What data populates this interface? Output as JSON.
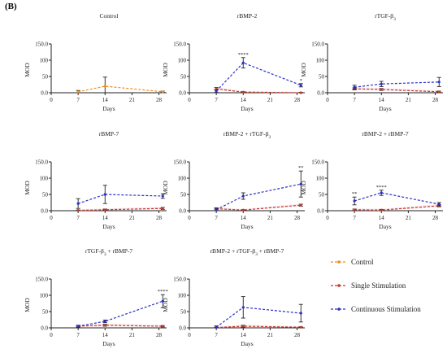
{
  "panel_label": "(B)",
  "colors": {
    "Control": "#f08c1e",
    "Single Stimulation": "#c0392b",
    "Continuous Stimulation": "#2a2fc9",
    "single_band": "#f4c7d0",
    "axis": "#222222"
  },
  "legend": {
    "items": [
      {
        "name": "Control",
        "color": "#f08c1e"
      },
      {
        "name": "Single Stimulation",
        "color": "#c0392b"
      },
      {
        "name": "Continuous Stimulation",
        "color": "#2a2fc9"
      }
    ]
  },
  "chart_data": [
    {
      "type": "line",
      "title": "Control",
      "xlabel": "Days",
      "ylabel": "MOD",
      "xlim": [
        0,
        30
      ],
      "ylim": [
        0,
        150
      ],
      "xticks": [
        0,
        7,
        14,
        21,
        28
      ],
      "yticks": [
        0,
        50,
        100,
        150
      ],
      "ytick_labels": [
        "0.0",
        "50",
        "100",
        "150.0"
      ],
      "series": [
        {
          "name": "Control",
          "x": [
            7,
            14,
            29
          ],
          "y": [
            3,
            20,
            3
          ],
          "err": [
            4,
            28,
            2
          ]
        }
      ],
      "annotations": []
    },
    {
      "type": "line",
      "title": "rBMP-2",
      "xlabel": "Days",
      "ylabel": "MOD",
      "xlim": [
        0,
        30
      ],
      "ylim": [
        0,
        150
      ],
      "xticks": [
        0,
        7,
        14,
        21,
        28
      ],
      "yticks": [
        0,
        50,
        100,
        150
      ],
      "ytick_labels": [
        "0.0",
        "50",
        "100",
        "150.0"
      ],
      "series": [
        {
          "name": "Single Stimulation",
          "x": [
            7,
            14,
            29
          ],
          "y": [
            12,
            2,
            0
          ],
          "err": [
            4,
            1,
            1
          ]
        },
        {
          "name": "Continuous Stimulation",
          "x": [
            7,
            14,
            29
          ],
          "y": [
            5,
            92,
            23
          ],
          "err": [
            4,
            16,
            5
          ]
        }
      ],
      "annotations": [
        {
          "x": 14,
          "text": "****"
        },
        {
          "x": 29,
          "text": "*"
        }
      ]
    },
    {
      "type": "line",
      "title": "rTGF-β",
      "title_sub": "3",
      "xlabel": "Days",
      "ylabel": "MOD",
      "xlim": [
        0,
        30
      ],
      "ylim": [
        0,
        150
      ],
      "xticks": [
        0,
        7,
        14,
        21,
        28
      ],
      "yticks": [
        0,
        50,
        100,
        150
      ],
      "ytick_labels": [
        "0.0",
        "50",
        "100",
        "150.0"
      ],
      "series": [
        {
          "name": "Single Stimulation",
          "x": [
            7,
            14,
            29
          ],
          "y": [
            12,
            10,
            3
          ],
          "err": [
            3,
            3,
            2
          ]
        },
        {
          "name": "Continuous Stimulation",
          "x": [
            7,
            14,
            29
          ],
          "y": [
            17,
            27,
            33
          ],
          "err": [
            6,
            8,
            14
          ]
        }
      ],
      "annotations": []
    },
    {
      "type": "line",
      "title": "rBMP-7",
      "xlabel": "Days",
      "ylabel": "MOD",
      "xlim": [
        0,
        30
      ],
      "ylim": [
        0,
        150
      ],
      "xticks": [
        0,
        7,
        14,
        21,
        28
      ],
      "yticks": [
        0,
        50,
        100,
        150
      ],
      "ytick_labels": [
        "0.0",
        "50",
        "100",
        "150.0"
      ],
      "series": [
        {
          "name": "Single Stimulation",
          "x": [
            7,
            14,
            29
          ],
          "y": [
            1,
            3,
            7
          ],
          "err": [
            1,
            2,
            3
          ]
        },
        {
          "name": "Continuous Stimulation",
          "x": [
            7,
            14,
            29
          ],
          "y": [
            22,
            50,
            45
          ],
          "err": [
            15,
            28,
            7
          ]
        }
      ],
      "annotations": []
    },
    {
      "type": "line",
      "title": "rBMP-2 + rTGF-β",
      "title_sub": "3",
      "xlabel": "Days",
      "ylabel": "MOD",
      "xlim": [
        0,
        30
      ],
      "ylim": [
        0,
        150
      ],
      "xticks": [
        0,
        7,
        14,
        21,
        28
      ],
      "yticks": [
        0,
        50,
        100,
        150
      ],
      "ytick_labels": [
        "0.0",
        "50",
        "100",
        "150.0"
      ],
      "series": [
        {
          "name": "Single Stimulation",
          "x": [
            7,
            14,
            29
          ],
          "y": [
            6,
            2,
            17
          ],
          "err": [
            3,
            1,
            3
          ]
        },
        {
          "name": "Continuous Stimulation",
          "x": [
            7,
            14,
            29
          ],
          "y": [
            3,
            45,
            82
          ],
          "err": [
            4,
            10,
            40
          ]
        }
      ],
      "annotations": [
        {
          "x": 29,
          "text": "**"
        }
      ]
    },
    {
      "type": "line",
      "title": "rBMP-2 + rBMP-7",
      "xlabel": "Days",
      "ylabel": "MOD",
      "xlim": [
        0,
        30
      ],
      "ylim": [
        0,
        150
      ],
      "xticks": [
        0,
        7,
        14,
        21,
        28
      ],
      "yticks": [
        0,
        50,
        100,
        150
      ],
      "ytick_labels": [
        "0.0",
        "50",
        "100",
        "150.0"
      ],
      "series": [
        {
          "name": "Single Stimulation",
          "x": [
            7,
            14,
            29
          ],
          "y": [
            3,
            2,
            15
          ],
          "err": [
            2,
            2,
            3
          ]
        },
        {
          "name": "Continuous Stimulation",
          "x": [
            7,
            14,
            29
          ],
          "y": [
            30,
            55,
            20
          ],
          "err": [
            12,
            8,
            5
          ]
        }
      ],
      "annotations": [
        {
          "x": 7,
          "text": "**"
        },
        {
          "x": 14,
          "text": "****"
        }
      ]
    },
    {
      "type": "line",
      "title": "rTGF-β",
      "title_sub": "3",
      "title_tail": " + rBMP-7",
      "xlabel": "Days",
      "ylabel": "MOD",
      "xlim": [
        0,
        30
      ],
      "ylim": [
        0,
        150
      ],
      "xticks": [
        0,
        7,
        14,
        21,
        28
      ],
      "yticks": [
        0,
        50,
        100,
        150
      ],
      "ytick_labels": [
        "0.0",
        "50",
        "100",
        "150.0"
      ],
      "series": [
        {
          "name": "Single Stimulation",
          "x": [
            7,
            14,
            29
          ],
          "y": [
            5,
            8,
            5
          ],
          "err": [
            2,
            3,
            2
          ]
        },
        {
          "name": "Continuous Stimulation",
          "x": [
            7,
            14,
            29
          ],
          "y": [
            5,
            20,
            82
          ],
          "err": [
            3,
            4,
            20
          ]
        }
      ],
      "annotations": [
        {
          "x": 29,
          "text": "****"
        }
      ]
    },
    {
      "type": "line",
      "title": "rBMP-2 + rTGF-β",
      "title_sub": "3",
      "title_tail": " + rBMP-7",
      "xlabel": "Days",
      "ylabel": "MOD",
      "xlim": [
        0,
        30
      ],
      "ylim": [
        0,
        150
      ],
      "xticks": [
        0,
        7,
        14,
        21,
        28
      ],
      "yticks": [
        0,
        50,
        100,
        150
      ],
      "ytick_labels": [
        "0.0",
        "50",
        "100",
        "150.0"
      ],
      "series": [
        {
          "name": "Single Stimulation",
          "x": [
            7,
            14,
            29
          ],
          "y": [
            1,
            5,
            2
          ],
          "err": [
            1,
            3,
            1
          ]
        },
        {
          "name": "Continuous Stimulation",
          "x": [
            7,
            14,
            29
          ],
          "y": [
            2,
            63,
            45
          ],
          "err": [
            4,
            33,
            27
          ]
        }
      ],
      "annotations": []
    }
  ]
}
